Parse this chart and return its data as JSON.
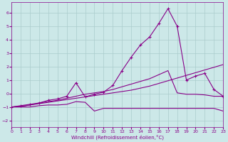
{
  "xlabel": "Windchill (Refroidissement éolien,°C)",
  "xlim": [
    0,
    23
  ],
  "ylim": [
    -2.5,
    6.8
  ],
  "yticks": [
    -2,
    -1,
    0,
    1,
    2,
    3,
    4,
    5,
    6
  ],
  "xticks": [
    0,
    1,
    2,
    3,
    4,
    5,
    6,
    7,
    8,
    9,
    10,
    11,
    12,
    13,
    14,
    15,
    16,
    17,
    18,
    19,
    20,
    21,
    22,
    23
  ],
  "bg_color": "#cce8e8",
  "grid_color": "#aacccc",
  "line_color": "#880088",
  "line1_x": [
    0,
    1,
    2,
    3,
    4,
    5,
    6,
    7,
    8,
    9,
    10,
    11,
    12,
    13,
    14,
    15,
    16,
    17,
    18,
    19,
    20,
    21,
    22,
    23
  ],
  "line1_y": [
    -1.0,
    -1.0,
    -1.0,
    -0.9,
    -0.85,
    -0.85,
    -0.8,
    -0.6,
    -0.65,
    -1.3,
    -1.1,
    -1.1,
    -1.1,
    -1.1,
    -1.1,
    -1.1,
    -1.1,
    -1.1,
    -1.1,
    -1.1,
    -1.1,
    -1.1,
    -1.1,
    -1.3
  ],
  "line2_x": [
    0,
    1,
    2,
    3,
    4,
    5,
    6,
    7,
    8,
    9,
    10,
    11,
    12,
    13,
    14,
    15,
    16,
    17,
    18,
    19,
    20,
    21,
    22,
    23
  ],
  "line2_y": [
    -1.0,
    -0.9,
    -0.8,
    -0.7,
    -0.5,
    -0.4,
    -0.2,
    0.8,
    -0.25,
    -0.05,
    0.1,
    0.6,
    1.7,
    2.7,
    3.6,
    4.2,
    5.2,
    6.3,
    5.0,
    1.0,
    1.3,
    1.5,
    0.3,
    -0.2
  ],
  "line3_x": [
    0,
    1,
    2,
    3,
    4,
    5,
    6,
    7,
    8,
    9,
    10,
    11,
    12,
    13,
    14,
    15,
    16,
    17,
    18,
    19,
    20,
    21,
    22,
    23
  ],
  "line3_y": [
    -1.0,
    -0.95,
    -0.85,
    -0.7,
    -0.6,
    -0.5,
    -0.35,
    -0.2,
    -0.05,
    0.05,
    0.15,
    0.3,
    0.5,
    0.7,
    0.9,
    1.1,
    1.4,
    1.7,
    0.05,
    -0.05,
    -0.05,
    -0.1,
    -0.2,
    -0.2
  ],
  "line4_x": [
    0,
    1,
    2,
    3,
    4,
    5,
    6,
    7,
    8,
    9,
    10,
    11,
    12,
    13,
    14,
    15,
    16,
    17,
    18,
    19,
    20,
    21,
    22,
    23
  ],
  "line4_y": [
    -1.0,
    -0.95,
    -0.85,
    -0.75,
    -0.65,
    -0.55,
    -0.45,
    -0.35,
    -0.25,
    -0.15,
    -0.05,
    0.05,
    0.15,
    0.25,
    0.4,
    0.55,
    0.75,
    0.95,
    1.15,
    1.35,
    1.55,
    1.75,
    1.95,
    2.15
  ]
}
